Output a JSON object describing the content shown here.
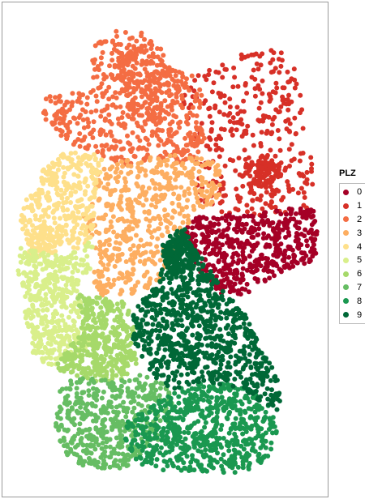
{
  "legend": {
    "title": "PLZ",
    "items": [
      {
        "label": "0",
        "color": "#a50026"
      },
      {
        "label": "1",
        "color": "#d73027"
      },
      {
        "label": "2",
        "color": "#f46d43"
      },
      {
        "label": "3",
        "color": "#fdae61"
      },
      {
        "label": "4",
        "color": "#fee08b"
      },
      {
        "label": "5",
        "color": "#d9ef8b"
      },
      {
        "label": "6",
        "color": "#a6d96a"
      },
      {
        "label": "7",
        "color": "#66bd63"
      },
      {
        "label": "8",
        "color": "#1a9850"
      },
      {
        "label": "9",
        "color": "#006837"
      }
    ]
  }
}
